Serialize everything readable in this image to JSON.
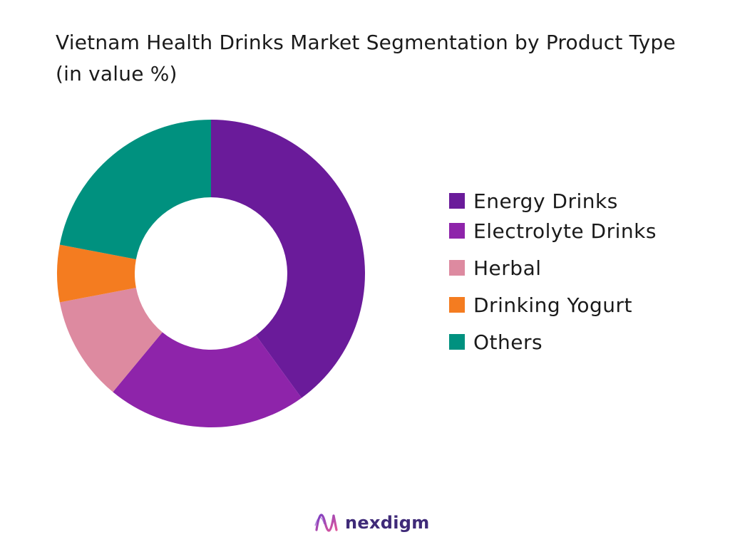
{
  "chart_data": {
    "type": "pie",
    "title_line1": "Vietnam Health Drinks Market Segmentation by Product Type",
    "title_line2": "(in value %)",
    "categories": [
      "Energy Drinks",
      "Electrolyte Drinks",
      "Herbal",
      "Drinking Yogurt",
      "Others"
    ],
    "values": [
      40,
      21,
      11,
      6,
      22
    ],
    "colors": [
      "#6a1b9a",
      "#8e24aa",
      "#dd8aa0",
      "#f47c20",
      "#00917f"
    ],
    "legend_position": "right",
    "donut": true
  },
  "brand": {
    "name": "nexdigm",
    "color": "#3f2a78"
  }
}
